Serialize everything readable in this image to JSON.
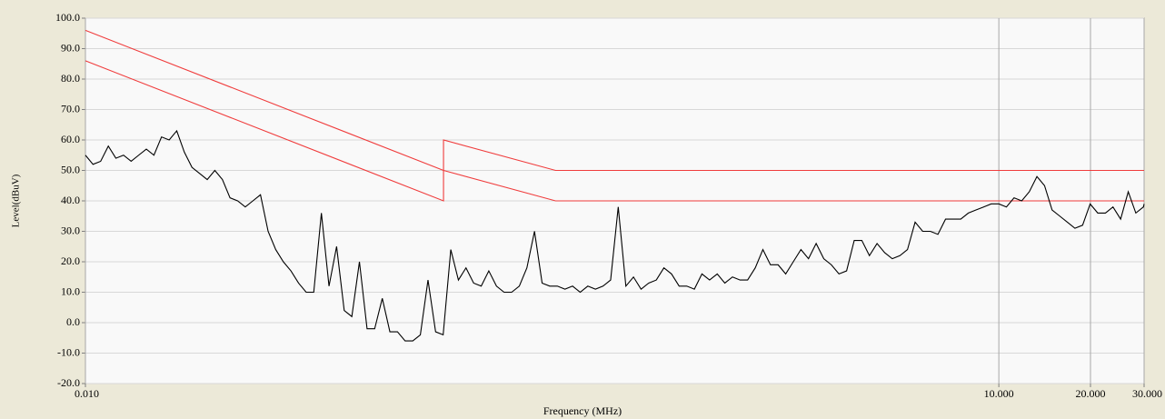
{
  "chart_data": {
    "type": "line",
    "xlabel": "Frequency (MHz)",
    "ylabel": "Level(dBuV)",
    "xscale": "log",
    "grid": true,
    "xlim": [
      0.01,
      30
    ],
    "ylim": [
      -20,
      100
    ],
    "xticks": [
      {
        "value": 0.01,
        "label": "0.010"
      },
      {
        "value": 10,
        "label": "10.000"
      },
      {
        "value": 20,
        "label": "20.000"
      },
      {
        "value": 30,
        "label": "30.000"
      }
    ],
    "yticks": [
      {
        "value": -20,
        "label": "-20.0"
      },
      {
        "value": -10,
        "label": "-10.0"
      },
      {
        "value": 0,
        "label": "0.0"
      },
      {
        "value": 10,
        "label": "10.0"
      },
      {
        "value": 20,
        "label": "20.0"
      },
      {
        "value": 30,
        "label": "30.0"
      },
      {
        "value": 40,
        "label": "40.0"
      },
      {
        "value": 50,
        "label": "50.0"
      },
      {
        "value": 60,
        "label": "60.0"
      },
      {
        "value": 70,
        "label": "70.0"
      },
      {
        "value": 80,
        "label": "80.0"
      },
      {
        "value": 90,
        "label": "90.0"
      },
      {
        "value": 100,
        "label": "100.0"
      }
    ],
    "series": [
      {
        "color": "#000000",
        "x": [
          0.01,
          0.01059,
          0.01122,
          0.01189,
          0.01259,
          0.01334,
          0.01413,
          0.01496,
          0.01585,
          0.01679,
          0.01778,
          0.01884,
          0.01995,
          0.02113,
          0.02239,
          0.02371,
          0.02512,
          0.02661,
          0.02818,
          0.02985,
          0.03162,
          0.0335,
          0.03548,
          0.03758,
          0.03981,
          0.04217,
          0.04467,
          0.04732,
          0.05012,
          0.05309,
          0.05623,
          0.05957,
          0.0631,
          0.06683,
          0.07079,
          0.07499,
          0.07943,
          0.08414,
          0.08913,
          0.09441,
          0.1,
          0.1059,
          0.1122,
          0.1189,
          0.1259,
          0.1334,
          0.1413,
          0.1496,
          0.1585,
          0.1679,
          0.1778,
          0.1884,
          0.1995,
          0.2113,
          0.2239,
          0.2371,
          0.2512,
          0.2661,
          0.2818,
          0.2985,
          0.3162,
          0.335,
          0.3548,
          0.3758,
          0.3981,
          0.4217,
          0.4467,
          0.4732,
          0.5012,
          0.5309,
          0.5623,
          0.5957,
          0.631,
          0.6683,
          0.7079,
          0.7499,
          0.7943,
          0.8414,
          0.8913,
          0.9441,
          1,
          1.059,
          1.122,
          1.189,
          1.259,
          1.334,
          1.413,
          1.496,
          1.585,
          1.679,
          1.778,
          1.884,
          1.995,
          2.113,
          2.239,
          2.371,
          2.512,
          2.661,
          2.818,
          2.985,
          3.162,
          3.35,
          3.548,
          3.758,
          3.981,
          4.217,
          4.467,
          4.732,
          5.012,
          5.309,
          5.623,
          5.957,
          6.31,
          6.683,
          7.079,
          7.499,
          7.943,
          8.414,
          8.913,
          9.441,
          10,
          10.59,
          11.22,
          11.89,
          12.59,
          13.34,
          14.13,
          14.96,
          15.85,
          16.79,
          17.78,
          18.84,
          19.95,
          21.13,
          22.39,
          23.71,
          25.12,
          26.61,
          28.18,
          29.85,
          30
        ],
        "values": [
          55,
          52,
          53,
          58,
          54,
          55,
          53,
          55,
          57,
          55,
          61,
          60,
          63,
          56,
          51,
          49,
          47,
          50,
          47,
          41,
          40,
          38,
          40,
          42,
          30,
          24,
          20,
          17,
          13,
          10,
          10,
          36,
          12,
          25,
          4,
          2,
          20,
          -2,
          -2,
          8,
          -3,
          -3,
          -6,
          -6,
          -4,
          14,
          -3,
          -4,
          24,
          14,
          18,
          13,
          12,
          17,
          12,
          10,
          10,
          12,
          18,
          30,
          13,
          12,
          12,
          11,
          12,
          10,
          12,
          11,
          12,
          14,
          38,
          12,
          15,
          11,
          13,
          14,
          18,
          16,
          12,
          12,
          11,
          16,
          14,
          16,
          13,
          15,
          14,
          14,
          18,
          24,
          19,
          19,
          16,
          20,
          24,
          21,
          26,
          21,
          19,
          16,
          17,
          27,
          27,
          22,
          26,
          23,
          21,
          22,
          24,
          33,
          30,
          30,
          29,
          34,
          34,
          34,
          36,
          37,
          38,
          39,
          39,
          38,
          41,
          40,
          43,
          48,
          45,
          37,
          35,
          33,
          31,
          32,
          39,
          36,
          36,
          38,
          34,
          43,
          36,
          38,
          39
        ]
      },
      {
        "color": "#f03c3c",
        "x": [
          0.01,
          0.15,
          0.35,
          30
        ],
        "values": [
          96,
          50,
          40,
          40
        ]
      },
      {
        "color": "#f03c3c",
        "x": [
          0.01,
          0.15,
          0.15,
          0.35,
          30
        ],
        "values": [
          86,
          40,
          60,
          50,
          50
        ]
      }
    ]
  }
}
